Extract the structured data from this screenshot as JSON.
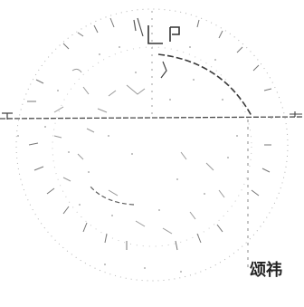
{
  "colors": {
    "background": "#ffffff",
    "stroke": "#6d6d6d",
    "stroke_dark": "#3a3a3a",
    "text": "#222222"
  },
  "caption": {
    "text": "颂祎"
  }
}
